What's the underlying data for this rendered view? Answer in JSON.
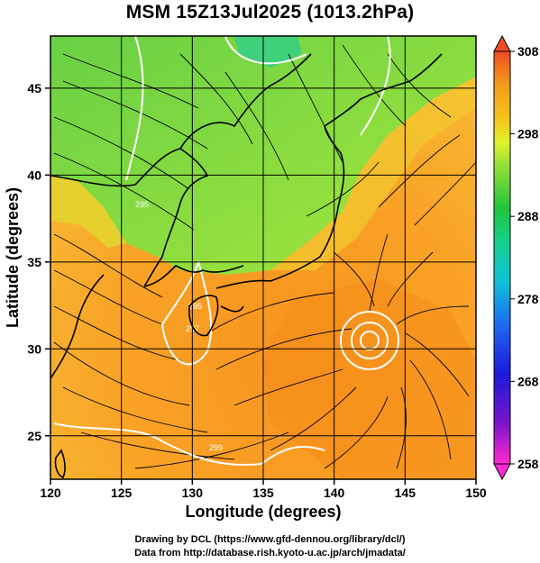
{
  "title": "MSM 15Z13Jul2025 (1013.2hPa)",
  "map": {
    "lon_range": [
      120,
      150
    ],
    "lat_range": [
      22.5,
      48
    ],
    "x_ticks": [
      120,
      125,
      130,
      135,
      140,
      145,
      150
    ],
    "y_ticks": [
      25,
      30,
      35,
      40,
      45
    ],
    "xlabel": "Longitude (degrees)",
    "ylabel": "Latitude  (degrees)",
    "gridlines": true,
    "layers": [
      "temperature-shading",
      "streamlines",
      "contours",
      "coastlines"
    ]
  },
  "colorbar": {
    "min": 258,
    "max": 308,
    "tick_labels": [
      "308",
      "298",
      "288",
      "278",
      "268",
      "258"
    ]
  },
  "contour_labels": [
    "295",
    "297",
    "299",
    "295"
  ],
  "credits": {
    "line1": "Drawing by DCL (https://www.gfd-dennou.org/library/dcl/)",
    "line2": "Data from http://database.rish.kyoto-u.ac.jp/arch/jmadata/"
  }
}
